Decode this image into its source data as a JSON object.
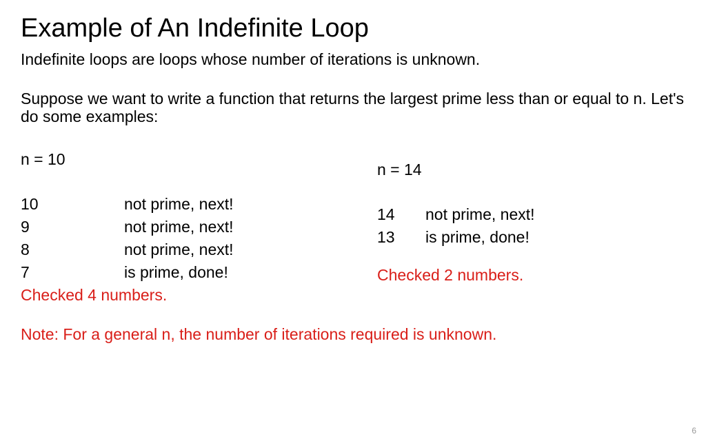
{
  "title": "Example of An Indefinite Loop",
  "intro": "Indefinite loops are loops whose number of iterations is unknown.",
  "description": "Suppose we want to write a function that returns the largest prime less than or equal to n. Let's do some examples:",
  "example_left": {
    "header": "n = 10",
    "checks": [
      {
        "num": "10",
        "result": "not prime, next!"
      },
      {
        "num": "9",
        "result": "not prime, next!"
      },
      {
        "num": "8",
        "result": "not prime, next!"
      },
      {
        "num": "7",
        "result": "is prime, done!"
      }
    ],
    "summary": "Checked 4 numbers."
  },
  "example_right": {
    "header": "n = 14",
    "checks": [
      {
        "num": "14",
        "result": "not prime, next!"
      },
      {
        "num": "13",
        "result": "is prime, done!"
      }
    ],
    "summary": "Checked 2 numbers."
  },
  "note": "Note: For a general n, the number of iterations required is unknown.",
  "page_number": "6",
  "colors": {
    "text_primary": "#000000",
    "text_accent": "#d91e18",
    "background": "#ffffff",
    "page_num": "#999999"
  },
  "typography": {
    "title_fontsize": 38,
    "body_fontsize": 23,
    "page_num_fontsize": 12,
    "font_family": "Gill Sans"
  }
}
